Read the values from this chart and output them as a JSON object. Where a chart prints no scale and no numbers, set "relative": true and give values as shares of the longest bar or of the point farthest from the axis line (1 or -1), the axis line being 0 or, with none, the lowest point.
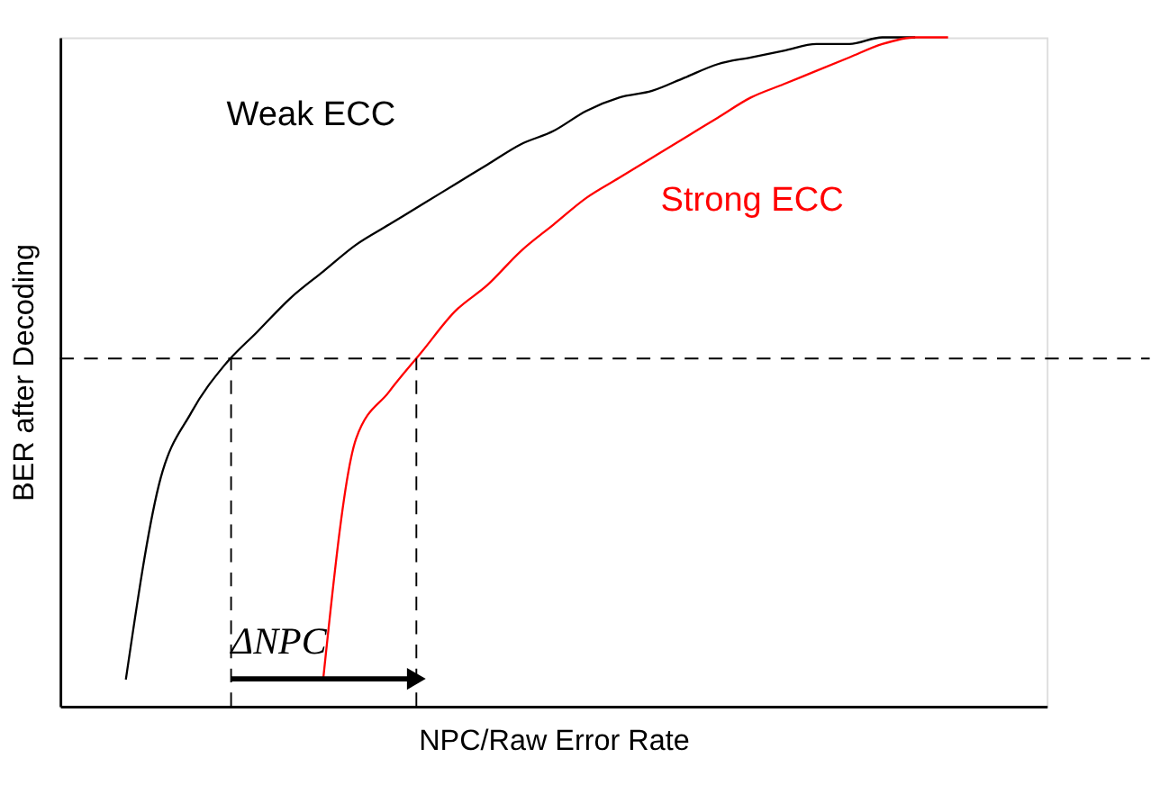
{
  "chart_data": {
    "type": "line",
    "xlabel": "NPC/Raw Error Rate",
    "ylabel": "BER after Decoding",
    "relative": true,
    "legend": false,
    "grid": false,
    "tick_labels": false,
    "categories": [
      null,
      null,
      null,
      null,
      null,
      null,
      null,
      null,
      null,
      null,
      null,
      null,
      null,
      null,
      null,
      null,
      null,
      null,
      null,
      null,
      null,
      null,
      null,
      null,
      null,
      null,
      null,
      null,
      null,
      null,
      null
    ],
    "series": [
      {
        "name": "Weak ECC",
        "color": "#000000",
        "values": [
          null,
          null,
          0.04,
          0.33,
          0.44,
          0.51,
          0.56,
          0.61,
          0.65,
          0.69,
          0.72,
          0.75,
          0.78,
          0.81,
          0.84,
          0.86,
          0.89,
          0.91,
          0.92,
          0.94,
          0.96,
          0.97,
          0.98,
          0.99,
          0.99,
          1,
          1,
          null,
          null,
          null,
          null
        ]
      },
      {
        "name": "Strong ECC",
        "color": "#ff0000",
        "values": [
          null,
          null,
          null,
          null,
          null,
          null,
          null,
          null,
          0.04,
          0.4,
          0.47,
          0.53,
          0.59,
          0.63,
          0.68,
          0.72,
          0.76,
          0.79,
          0.82,
          0.85,
          0.88,
          0.91,
          0.93,
          0.95,
          0.97,
          0.99,
          1,
          1,
          null,
          null,
          null
        ]
      }
    ],
    "ref_lines": [
      {
        "axis": "y",
        "value": 0.52,
        "label": null,
        "color": "#000000",
        "line_style": "dashed"
      }
    ],
    "annotations": [
      "ΔNPC"
    ]
  }
}
